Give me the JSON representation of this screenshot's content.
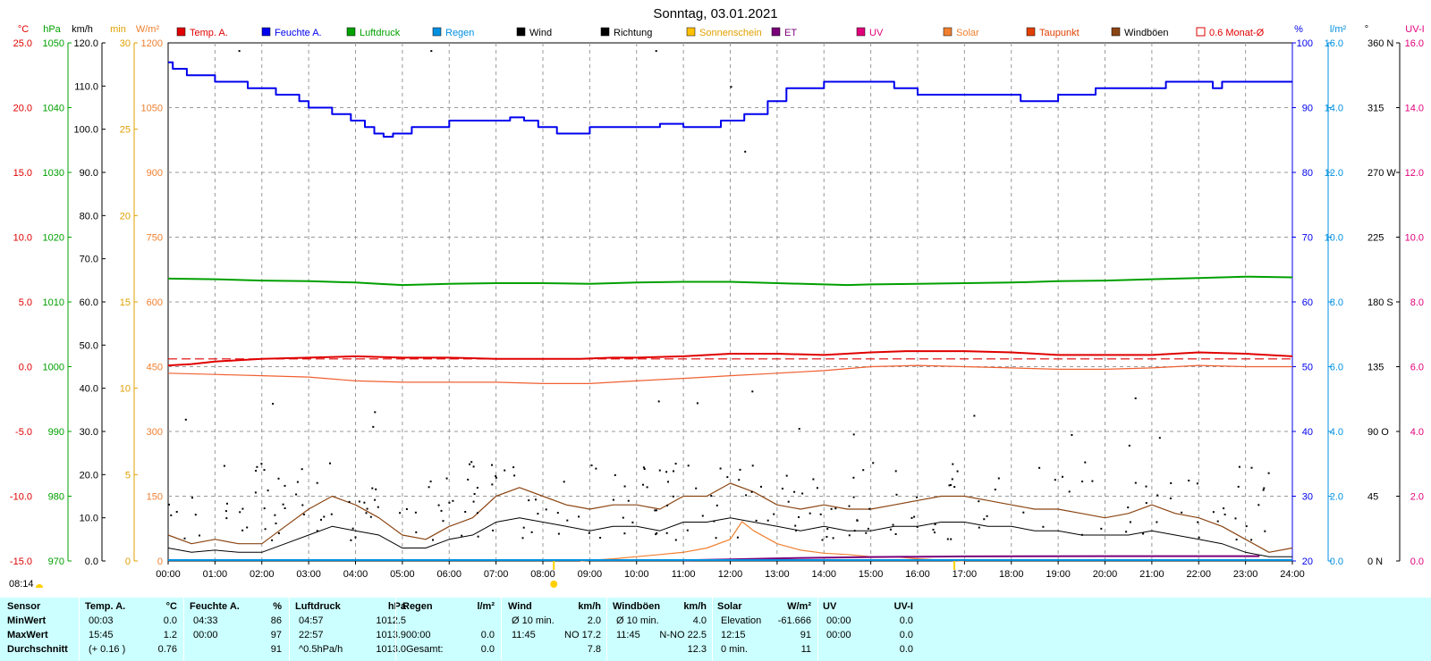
{
  "title": "Sonntag, 03.01.2021",
  "colors": {
    "temp": "#e00000",
    "humidity": "#0000ee",
    "pressure": "#00a000",
    "rain": "#0090e0",
    "wind": "#000000",
    "gust": "#8b4513",
    "sunshine": "#e0a000",
    "et": "#7a007a",
    "uv": "#e0007a",
    "solar": "#f08030",
    "dewpoint": "#e04000",
    "grid": "#999999"
  },
  "legend": [
    {
      "label": "Temp. A.",
      "color": "#e00000",
      "text_color": "#e00000",
      "kind": "box"
    },
    {
      "label": "Feuchte A.",
      "color": "#0000ee",
      "text_color": "#0000ee",
      "kind": "box"
    },
    {
      "label": "Luftdruck",
      "color": "#00a000",
      "text_color": "#00a000",
      "kind": "box"
    },
    {
      "label": "Regen",
      "color": "#0090e0",
      "text_color": "#0090e0",
      "kind": "box"
    },
    {
      "label": "Wind",
      "color": "#000000",
      "text_color": "#000000",
      "kind": "box"
    },
    {
      "label": "Richtung",
      "color": "#000000",
      "text_color": "#000000",
      "kind": "box"
    },
    {
      "label": "Sonnenschein",
      "color": "#ffc000",
      "text_color": "#e0a000",
      "kind": "box"
    },
    {
      "label": "ET",
      "color": "#7a007a",
      "text_color": "#7a007a",
      "kind": "box"
    },
    {
      "label": "UV",
      "color": "#e0007a",
      "text_color": "#e0007a",
      "kind": "box"
    },
    {
      "label": "Solar",
      "color": "#f08030",
      "text_color": "#f08030",
      "kind": "box"
    },
    {
      "label": "Taupunkt",
      "color": "#e04000",
      "text_color": "#e04000",
      "kind": "box"
    },
    {
      "label": "Windböen",
      "color": "#8b4513",
      "text_color": "#000000",
      "kind": "box"
    },
    {
      "label": "0.6 Monat-Ø",
      "color": "#e00000",
      "text_color": "#e00000",
      "kind": "outline"
    }
  ],
  "axes": {
    "temp": {
      "unit": "°C",
      "color": "#e00000",
      "ticks": [
        "25.0",
        "20.0",
        "15.0",
        "10.0",
        "5.0",
        "0.0",
        "-5.0",
        "-10.0",
        "-15.0"
      ]
    },
    "pressure": {
      "unit": "hPa",
      "color": "#00a000",
      "ticks": [
        "1050",
        "1040",
        "1030",
        "1020",
        "1010",
        "1000",
        "990",
        "980",
        "970"
      ]
    },
    "wind": {
      "unit": "km/h",
      "color": "#000000",
      "ticks": [
        "120.0",
        "110.0",
        "100.0",
        "90.0",
        "80.0",
        "70.0",
        "60.0",
        "50.0",
        "40.0",
        "30.0",
        "20.0",
        "10.0",
        "0.0"
      ]
    },
    "sunshine": {
      "unit": "min",
      "color": "#e0a000",
      "ticks": [
        "30",
        "25",
        "20",
        "15",
        "10",
        "5",
        "0"
      ]
    },
    "solar": {
      "unit": "W/m²",
      "color": "#f08030",
      "ticks": [
        "1200",
        "1050",
        "900",
        "750",
        "600",
        "450",
        "300",
        "150",
        "0"
      ]
    },
    "humidity": {
      "unit": "%",
      "color": "#0000ee",
      "ticks": [
        "100",
        "90",
        "80",
        "70",
        "60",
        "50",
        "40",
        "30",
        "20"
      ]
    },
    "rain": {
      "unit": "l/m²",
      "color": "#0090e0",
      "ticks": [
        "16.0",
        "14.0",
        "12.0",
        "10.0",
        "8.0",
        "6.0",
        "4.0",
        "2.0",
        "0.0"
      ]
    },
    "direction": {
      "unit": "°",
      "color": "#000000",
      "ticks": [
        "360 N",
        "315",
        "270 W",
        "225",
        "180 S",
        "135",
        "90 O",
        "45",
        "0 N"
      ]
    },
    "uv": {
      "unit": "UV-I",
      "color": "#e0007a",
      "ticks": [
        "16.0",
        "14.0",
        "12.0",
        "10.0",
        "8.0",
        "6.0",
        "4.0",
        "2.0",
        "0.0"
      ]
    },
    "time": {
      "ticks": [
        "00:00",
        "01:00",
        "02:00",
        "03:00",
        "04:00",
        "05:00",
        "06:00",
        "07:00",
        "08:00",
        "09:00",
        "10:00",
        "11:00",
        "12:00",
        "13:00",
        "14:00",
        "15:00",
        "16:00",
        "17:00",
        "18:00",
        "19:00",
        "20:00",
        "21:00",
        "22:00",
        "23:00",
        "24:00"
      ]
    }
  },
  "sunrise_label": "08:14",
  "chart_data": {
    "type": "line",
    "title": "Sonntag, 03.01.2021",
    "xlim": [
      0,
      24
    ],
    "series": [
      {
        "name": "Feuchte A.",
        "axis": "humidity",
        "x": [
          0,
          0.1,
          0.4,
          1.0,
          1.7,
          2.3,
          2.8,
          3.0,
          3.5,
          3.9,
          4.2,
          4.4,
          4.6,
          4.8,
          5.2,
          5.5,
          6.0,
          6.8,
          7.3,
          7.6,
          7.9,
          8.3,
          8.5,
          9.0,
          10.0,
          10.5,
          11.0,
          11.3,
          11.8,
          12.3,
          12.8,
          13.2,
          14.0,
          14.5,
          15.5,
          16.0,
          17.0,
          18.2,
          19.0,
          19.8,
          20.2,
          21.3,
          21.5,
          22.3,
          22.5,
          23.5,
          24.0
        ],
        "y": [
          97,
          96,
          95,
          94,
          93,
          92,
          91,
          90,
          89,
          88,
          87,
          86,
          85.5,
          86,
          87,
          87,
          88,
          88,
          88.5,
          88,
          87,
          86,
          86,
          87,
          87,
          87.5,
          87,
          87,
          88,
          89,
          91,
          93,
          94,
          94,
          93,
          92,
          92,
          91,
          92,
          93,
          93,
          94,
          94,
          93,
          94,
          94,
          94
        ]
      },
      {
        "name": "Luftdruck",
        "axis": "pressure",
        "x": [
          0,
          1,
          2,
          3,
          4,
          4.5,
          5,
          6,
          7,
          8,
          9,
          10,
          11,
          12,
          13,
          14,
          14.5,
          15,
          16,
          17,
          18,
          19,
          20,
          21,
          22,
          23,
          24
        ],
        "y": [
          1013.6,
          1013.5,
          1013.3,
          1013.2,
          1013.0,
          1012.8,
          1012.6,
          1012.8,
          1012.9,
          1012.9,
          1012.8,
          1013.0,
          1013.1,
          1013.1,
          1012.9,
          1012.7,
          1012.6,
          1012.7,
          1012.8,
          1012.9,
          1013.0,
          1013.2,
          1013.3,
          1013.5,
          1013.7,
          1013.9,
          1013.8
        ]
      },
      {
        "name": "Temp. A.",
        "axis": "temp",
        "x": [
          0,
          0.5,
          1.0,
          2.0,
          3.0,
          4.0,
          5.0,
          6.0,
          7.0,
          8.0,
          8.8,
          9.5,
          10.0,
          11.0,
          12.0,
          13.0,
          14.0,
          15.0,
          15.75,
          17.0,
          18.0,
          19.0,
          20.0,
          21.0,
          22.0,
          23.0,
          24.0
        ],
        "y": [
          0.1,
          0.2,
          0.4,
          0.6,
          0.7,
          0.8,
          0.7,
          0.7,
          0.6,
          0.6,
          0.6,
          0.7,
          0.7,
          0.8,
          1.0,
          1.0,
          0.9,
          1.1,
          1.2,
          1.2,
          1.1,
          0.9,
          0.9,
          0.9,
          1.1,
          1.0,
          0.8
        ]
      },
      {
        "name": "0.6 Monat-Ø",
        "axis": "temp",
        "x": [
          0,
          24
        ],
        "y": [
          0.6,
          0.6
        ]
      },
      {
        "name": "Taupunkt",
        "axis": "temp",
        "x": [
          0,
          1,
          2,
          3,
          4,
          5,
          6,
          7,
          8,
          9,
          10,
          11,
          12,
          13,
          14,
          15,
          16,
          17,
          18,
          19,
          20,
          21,
          22,
          23,
          24
        ],
        "y": [
          -0.5,
          -0.6,
          -0.7,
          -0.8,
          -1.1,
          -1.2,
          -1.2,
          -1.2,
          -1.3,
          -1.3,
          -1.1,
          -0.9,
          -0.7,
          -0.5,
          -0.3,
          0.0,
          0.1,
          0.0,
          -0.1,
          -0.2,
          -0.2,
          -0.1,
          0.1,
          0.0,
          0.0
        ]
      },
      {
        "name": "Solar",
        "axis": "solar",
        "x": [
          8.8,
          9.5,
          10.0,
          10.5,
          11.0,
          11.5,
          12.0,
          12.25,
          12.5,
          13.0,
          13.5,
          14.0,
          14.5,
          15.0,
          15.5,
          16.0,
          16.5,
          17.0
        ],
        "y": [
          0,
          5,
          10,
          15,
          20,
          30,
          50,
          91,
          70,
          40,
          25,
          18,
          15,
          10,
          10,
          5,
          2,
          0
        ]
      },
      {
        "name": "ET",
        "axis": "rain",
        "x": [
          11.0,
          12.0,
          13.0,
          15.0,
          17.0,
          20.0,
          23.0,
          23.3
        ],
        "y": [
          0.02,
          0.05,
          0.08,
          0.12,
          0.14,
          0.15,
          0.15,
          0.15
        ]
      },
      {
        "name": "Wind",
        "axis": "wind",
        "x": [
          0,
          0.5,
          1,
          1.5,
          2,
          2.5,
          3,
          3.5,
          4,
          4.5,
          5,
          5.5,
          6,
          6.5,
          7,
          7.5,
          8,
          8.5,
          9,
          9.5,
          10,
          10.5,
          11,
          11.5,
          12,
          12.5,
          13,
          13.5,
          14,
          14.5,
          15,
          15.5,
          16,
          16.5,
          17,
          17.5,
          18,
          18.5,
          19,
          19.5,
          20,
          20.5,
          21,
          21.5,
          22,
          22.5,
          23,
          23.5,
          24
        ],
        "y": [
          3,
          2,
          2.5,
          2,
          2,
          4,
          6,
          8,
          7,
          6,
          3,
          3,
          5,
          6,
          9,
          10,
          9,
          8,
          7,
          8,
          8,
          7,
          9,
          9,
          10,
          9,
          8,
          7,
          8,
          7,
          7,
          8,
          8,
          9,
          9,
          8,
          8,
          7,
          7,
          6,
          6,
          6,
          7,
          6,
          5,
          4,
          2,
          1,
          1
        ]
      },
      {
        "name": "Windböen",
        "axis": "wind",
        "x": [
          0,
          0.5,
          1,
          1.5,
          2,
          2.5,
          3,
          3.5,
          4,
          4.5,
          5,
          5.5,
          6,
          6.5,
          7,
          7.5,
          8,
          8.5,
          9,
          9.5,
          10,
          10.5,
          11,
          11.5,
          12,
          12.5,
          13,
          13.5,
          14,
          14.5,
          15,
          15.5,
          16,
          16.5,
          17,
          17.5,
          18,
          18.5,
          19,
          19.5,
          20,
          20.5,
          21,
          21.5,
          22,
          22.5,
          23,
          23.5,
          24
        ],
        "y": [
          6,
          4,
          5,
          4,
          4,
          8,
          12,
          15,
          13,
          10,
          6,
          5,
          8,
          10,
          15,
          17,
          15,
          13,
          12,
          13,
          13,
          12,
          15,
          15,
          18,
          16,
          13,
          12,
          13,
          12,
          12,
          13,
          14,
          15,
          15,
          14,
          13,
          12,
          12,
          11,
          10,
          11,
          13,
          11,
          10,
          8,
          5,
          2,
          3
        ]
      }
    ]
  },
  "summary": {
    "col_sensor": {
      "h": "Sensor",
      "r1": "MinWert",
      "r2": "MaxWert",
      "r3": "Durchschnitt"
    },
    "temp": {
      "h": "Temp. A.",
      "u": "°C",
      "r1a": "00:03",
      "r1b": "0.0",
      "r2a": "15:45",
      "r2b": "1.2",
      "r3a": "(+ 0.16 )",
      "r3b": "0.76"
    },
    "hum": {
      "h": "Feuchte A.",
      "u": "%",
      "r1a": "04:33",
      "r1b": "86",
      "r2a": "00:00",
      "r2b": "97",
      "r3a": "",
      "r3b": "91"
    },
    "press": {
      "h": "Luftdruck",
      "u": "hPa",
      "r1a": "04:57",
      "r1b": "1012.5",
      "r2a": "22:57",
      "r2b": "1013.9",
      "r3a": "^0.5hPa/h",
      "r3b": "1013.0"
    },
    "rain": {
      "h": "Regen",
      "u": "l/m²",
      "r1a": "",
      "r1b": "",
      "r2a": "00:00",
      "r2b": "0.0",
      "r3a": "Gesamt:",
      "r3b": "0.0"
    },
    "wind": {
      "h": "Wind",
      "u": "km/h",
      "r1a": "Ø 10 min.",
      "r1b": "2.0",
      "r2a": "11:45",
      "r2b": "NO 17.2",
      "r3a": "",
      "r3b": "7.8"
    },
    "gust": {
      "h": "Windböen",
      "u": "km/h",
      "r1a": "Ø 10 min.",
      "r1b": "4.0",
      "r2a": "11:45",
      "r2b": "N-NO 22.5",
      "r3a": "",
      "r3b": "12.3"
    },
    "solar": {
      "h": "Solar",
      "u": "W/m²",
      "r1a": "Elevation",
      "r1b": "-61.666",
      "r2a": "12:15",
      "r2b": "91",
      "r3a": "0 min.",
      "r3b": "11"
    },
    "uv": {
      "h": "UV",
      "u": "UV-I",
      "r1a": "00:00",
      "r1b": "0.0",
      "r2a": "00:00",
      "r2b": "0.0",
      "r3a": "",
      "r3b": "0.0"
    }
  }
}
